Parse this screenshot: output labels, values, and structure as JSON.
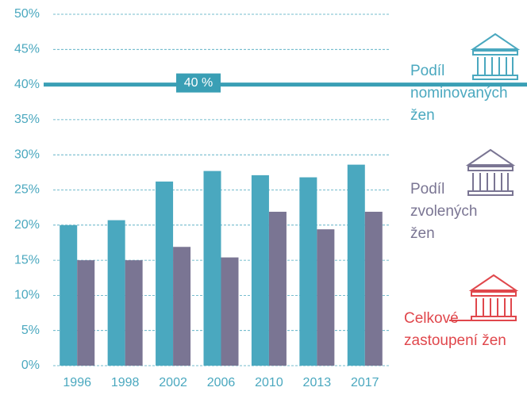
{
  "chart_data": {
    "type": "bar",
    "categories": [
      "1996",
      "1998",
      "2002",
      "2006",
      "2010",
      "2013",
      "2017"
    ],
    "series": [
      {
        "name": "Podíl nominovaných žen",
        "color": "#4aa8bf",
        "values": [
          20.0,
          20.7,
          26.2,
          27.7,
          27.1,
          26.8,
          28.6
        ]
      },
      {
        "name": "Podíl zvolených žen",
        "color": "#7a7593",
        "values": [
          15.0,
          15.0,
          16.9,
          15.4,
          21.9,
          19.4,
          21.9
        ]
      }
    ],
    "annotations": [
      {
        "text": "Celkové zastoupení žen",
        "color": "#e0474c"
      }
    ],
    "reference_line": {
      "value": 40,
      "label": "40 %",
      "color": "#3a9fb5"
    },
    "ylim": [
      0,
      50
    ],
    "yticks": [
      {
        "value": 0,
        "label": "0%"
      },
      {
        "value": 5,
        "label": "5%"
      },
      {
        "value": 10,
        "label": "10%"
      },
      {
        "value": 15,
        "label": "15%"
      },
      {
        "value": 20,
        "label": "20%"
      },
      {
        "value": 25,
        "label": "25%"
      },
      {
        "value": 30,
        "label": "30%"
      },
      {
        "value": 35,
        "label": "35%"
      },
      {
        "value": 40,
        "label": "40%"
      },
      {
        "value": 45,
        "label": "45%"
      },
      {
        "value": 50,
        "label": "50%"
      }
    ],
    "grid": true
  }
}
